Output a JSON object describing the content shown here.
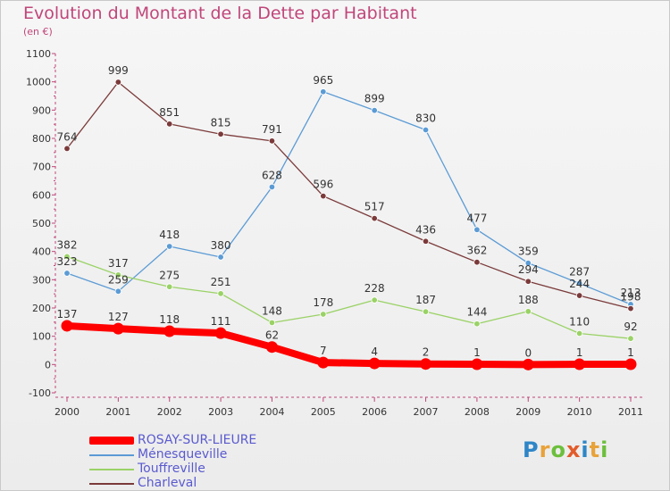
{
  "header": {
    "title": "Evolution du Montant de la Dette par Habitant",
    "subtitle": "(en €)"
  },
  "logo": {
    "text": "Proxiti",
    "letter_colors": [
      "#2e86c7",
      "#e8a23a",
      "#6cbf3c",
      "#e25b2a",
      "#2e86c7",
      "#e8a23a",
      "#6cbf3c"
    ]
  },
  "chart_data": {
    "type": "line",
    "title": "Evolution du Montant de la Dette par Habitant",
    "subtitle": "(en €)",
    "xlabel": "",
    "ylabel": "",
    "x": [
      "2000",
      "2001",
      "2002",
      "2003",
      "2004",
      "2005",
      "2006",
      "2007",
      "2008",
      "2009",
      "2010",
      "2011"
    ],
    "ylim": [
      -100,
      1100
    ],
    "yticks": [
      -100,
      0,
      100,
      200,
      300,
      400,
      500,
      600,
      700,
      800,
      900,
      1000,
      1100
    ],
    "grid": false,
    "legend_position": "bottom-left",
    "series": [
      {
        "name": "ROSAY-SUR-LIEURE",
        "color": "#ff0000",
        "values": [
          137,
          127,
          118,
          111,
          62,
          7,
          4,
          2,
          1,
          0,
          1,
          1
        ],
        "labels": [
          "137",
          "127",
          "118",
          "111",
          "62",
          "7",
          "4",
          "2",
          "1",
          "0",
          "1",
          "1"
        ]
      },
      {
        "name": "Ménesqueville",
        "color": "#5b9bd5",
        "values": [
          323,
          259,
          418,
          380,
          628,
          965,
          899,
          830,
          477,
          359,
          287,
          213
        ],
        "labels": [
          "323",
          "259",
          "418",
          "380",
          "628",
          "965",
          "899",
          "830",
          "477",
          "359",
          "287",
          "213"
        ]
      },
      {
        "name": "Touffreville",
        "color": "#9ad266",
        "values": [
          382,
          317,
          275,
          251,
          148,
          178,
          228,
          187,
          144,
          188,
          110,
          92
        ],
        "labels": [
          "382",
          "317",
          "275",
          "251",
          "148",
          "178",
          "228",
          "187",
          "144",
          "188",
          "110",
          "92"
        ]
      },
      {
        "name": "Charleval",
        "color": "#7b3a3a",
        "values": [
          764,
          999,
          851,
          815,
          791,
          596,
          517,
          436,
          362,
          294,
          244,
          198
        ],
        "labels": [
          "764",
          "999",
          "851",
          "815",
          "791",
          "596",
          "517",
          "436",
          "362",
          "294",
          "244",
          "198"
        ]
      }
    ]
  }
}
